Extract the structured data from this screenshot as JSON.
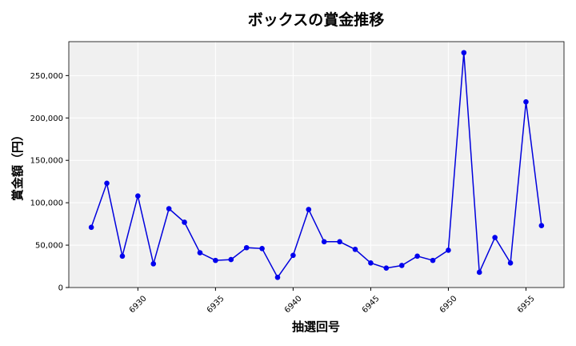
{
  "chart_data": {
    "type": "line",
    "title": "ボックスの賞金推移",
    "xlabel": "抽選回号",
    "ylabel": "賞金額（円）",
    "x": [
      6927,
      6928,
      6929,
      6930,
      6931,
      6932,
      6933,
      6934,
      6935,
      6936,
      6937,
      6938,
      6939,
      6940,
      6941,
      6942,
      6943,
      6944,
      6945,
      6946,
      6947,
      6948,
      6949,
      6950,
      6951,
      6952,
      6953,
      6954,
      6955,
      6956
    ],
    "series": [
      {
        "values": [
          71000,
          123000,
          37000,
          108000,
          28000,
          93000,
          77000,
          41000,
          32000,
          33000,
          47000,
          46000,
          12000,
          38000,
          92000,
          54000,
          54000,
          45000,
          29000,
          23000,
          26000,
          37000,
          32000,
          44000,
          277000,
          18000,
          59000,
          29000,
          219000,
          73000
        ]
      }
    ],
    "xticks": [
      6930,
      6935,
      6940,
      6945,
      6950,
      6955
    ],
    "yticks": [
      0,
      50000,
      100000,
      150000,
      200000,
      250000
    ],
    "ytick_labels": [
      "0",
      "50,000",
      "100,000",
      "150,000",
      "200,000",
      "250,000"
    ],
    "xlim": [
      6925.55,
      6957.45
    ],
    "ylim": [
      0,
      290000
    ],
    "grid": true,
    "colors": {
      "line": "#0000dd",
      "marker": "#0000ee",
      "plot_background": "#f0f0f0"
    }
  }
}
